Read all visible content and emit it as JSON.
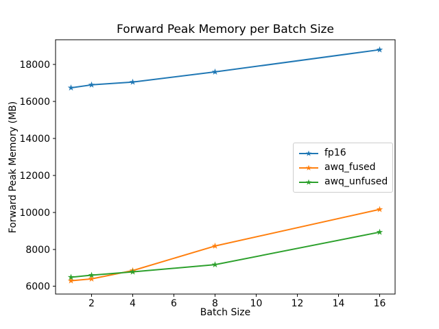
{
  "chart_data": {
    "type": "line",
    "title": "Forward Peak Memory per Batch Size",
    "xlabel": "Batch Size",
    "ylabel": "Forward Peak Memory (MB)",
    "x": [
      1,
      2,
      4,
      8,
      16
    ],
    "series": [
      {
        "name": "fp16",
        "color": "#1f77b4",
        "marker": "star",
        "values": [
          16740,
          16900,
          17050,
          17600,
          18800
        ]
      },
      {
        "name": "awq_fused",
        "color": "#ff7f0e",
        "marker": "star",
        "values": [
          6300,
          6400,
          6850,
          8180,
          10160
        ]
      },
      {
        "name": "awq_unfused",
        "color": "#2ca02c",
        "marker": "star",
        "values": [
          6490,
          6600,
          6780,
          7170,
          8930
        ]
      }
    ],
    "xticks": [
      2,
      4,
      6,
      8,
      10,
      12,
      14,
      16
    ],
    "yticks": [
      6000,
      8000,
      10000,
      12000,
      14000,
      16000,
      18000
    ],
    "xlim": [
      0.25,
      16.75
    ],
    "ylim": [
      5580,
      19340
    ],
    "grid": false,
    "legend_position": "center right",
    "axis_color": "#000000",
    "background_color": "#ffffff",
    "legend_border_color": "#cccccc"
  }
}
